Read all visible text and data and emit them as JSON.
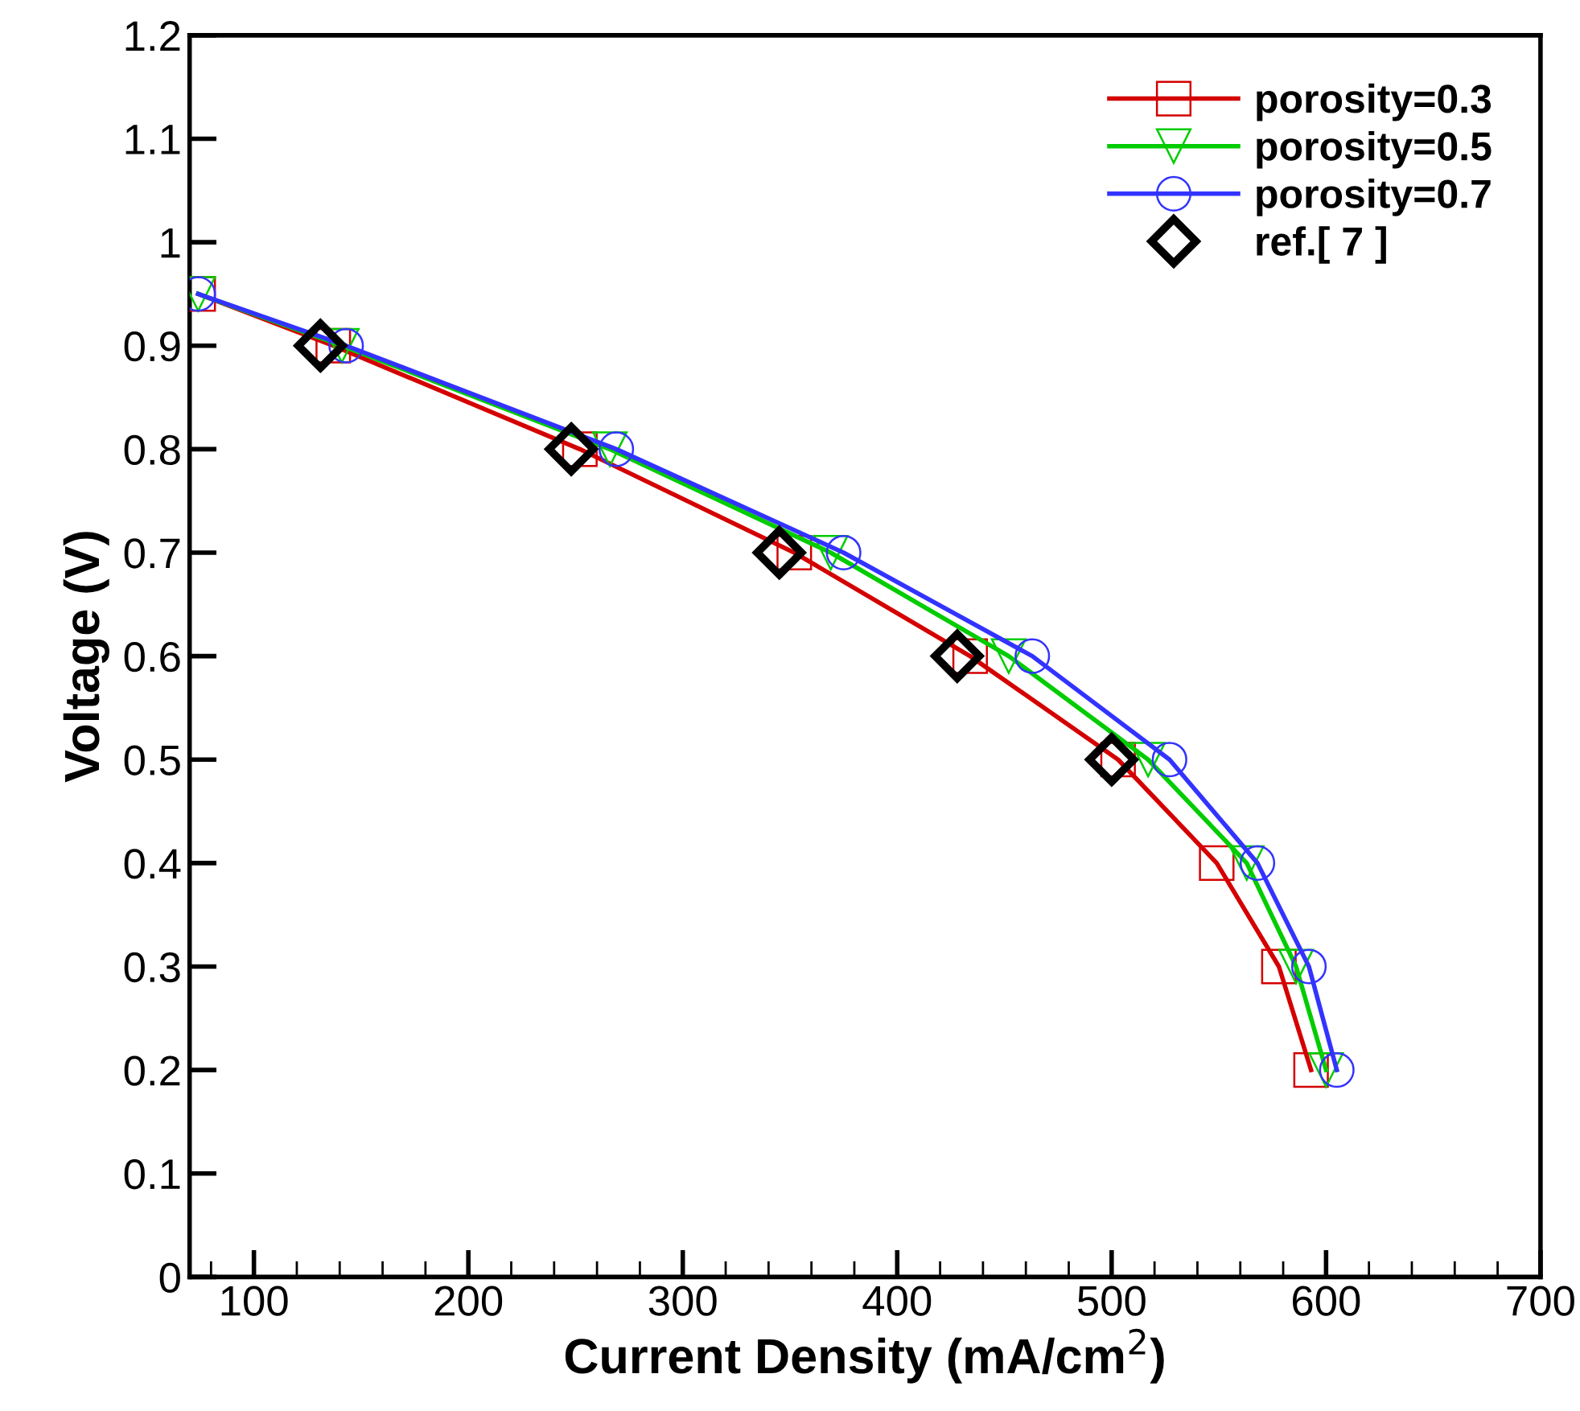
{
  "chart_data": {
    "type": "line",
    "xlabel": "Current Density (mA/cm$^{2}$)",
    "ylabel": "Voltage (V)",
    "xlim": [
      70,
      700
    ],
    "xticks": [
      100,
      200,
      300,
      400,
      500,
      600,
      700
    ],
    "ylim": [
      0,
      1.2
    ],
    "yticks": [
      0,
      0.1,
      0.2,
      0.3,
      0.4,
      0.5,
      0.6,
      0.7,
      0.8,
      0.9,
      1,
      1.1,
      1.2
    ],
    "grid": false,
    "legend": "top right",
    "series": [
      {
        "name": "porosity=0.3",
        "color": "#d40000",
        "marker": "square",
        "x": [
          74,
          137,
          252,
          352,
          434,
          503,
          549,
          578,
          593
        ],
        "values": [
          0.95,
          0.9,
          0.8,
          0.7,
          0.6,
          0.5,
          0.4,
          0.3,
          0.2
        ]
      },
      {
        "name": "porosity=0.5",
        "color": "#00cc00",
        "marker": "triangle",
        "x": [
          74,
          141,
          266,
          369,
          452,
          517,
          563,
          586,
          600
        ],
        "values": [
          0.95,
          0.9,
          0.8,
          0.7,
          0.6,
          0.5,
          0.4,
          0.3,
          0.2
        ]
      },
      {
        "name": "porosity=0.7",
        "color": "#3333ff",
        "marker": "circle",
        "x": [
          74,
          143,
          269,
          375,
          463,
          527,
          568,
          592,
          605
        ],
        "values": [
          0.95,
          0.9,
          0.8,
          0.7,
          0.6,
          0.5,
          0.4,
          0.3,
          0.2
        ]
      },
      {
        "name": "ref.[ 7 ]",
        "color": "#000000",
        "type": "scatter",
        "marker": "diamond",
        "x": [
          131,
          248,
          345,
          428,
          500
        ],
        "values": [
          0.9,
          0.8,
          0.7,
          0.6,
          0.5
        ]
      }
    ]
  }
}
